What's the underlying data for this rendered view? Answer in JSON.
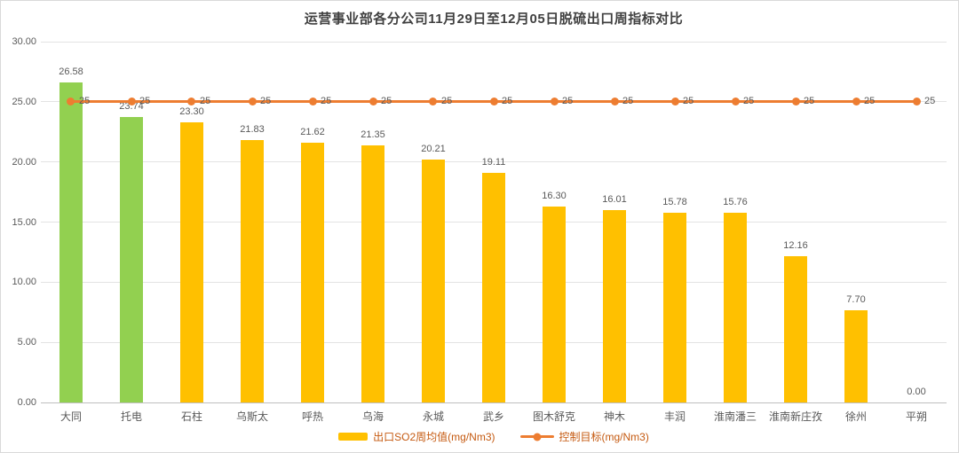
{
  "title": "运营事业部各分公司11月29日至12月05日脱硫出口周指标对比",
  "chart_data": {
    "type": "bar",
    "title": "运营事业部各分公司11月29日至12月05日脱硫出口周指标对比",
    "categories": [
      "大同",
      "托电",
      "石柱",
      "乌斯太",
      "呼热",
      "乌海",
      "永城",
      "武乡",
      "图木舒克",
      "神木",
      "丰润",
      "淮南潘三",
      "淮南新庄孜",
      "徐州",
      "平朔"
    ],
    "series": [
      {
        "name": "出口SO2周均值(mg/Nm3)",
        "type": "bar",
        "values": [
          26.58,
          23.74,
          23.3,
          21.83,
          21.62,
          21.35,
          20.21,
          19.11,
          16.3,
          16.01,
          15.78,
          15.76,
          12.16,
          7.7,
          0.0
        ],
        "bar_colors": [
          "#92D050",
          "#92D050",
          "#FFC000",
          "#FFC000",
          "#FFC000",
          "#FFC000",
          "#FFC000",
          "#FFC000",
          "#FFC000",
          "#FFC000",
          "#FFC000",
          "#FFC000",
          "#FFC000",
          "#FFC000",
          "#FFC000"
        ]
      },
      {
        "name": "控制目标(mg/Nm3)",
        "type": "line",
        "values": [
          25,
          25,
          25,
          25,
          25,
          25,
          25,
          25,
          25,
          25,
          25,
          25,
          25,
          25,
          25
        ],
        "color": "#ED7D31"
      }
    ],
    "xlabel": "",
    "ylabel": "",
    "ylim": [
      0,
      30
    ],
    "yticks": [
      30,
      25,
      20,
      15,
      10,
      5,
      0
    ],
    "ytick_labels": [
      "30.00",
      "25.00",
      "20.00",
      "15.00",
      "10.00",
      "5.00",
      "0.00"
    ],
    "grid": true,
    "legend_position": "bottom"
  },
  "colors": {
    "bar_default": "#FFC000",
    "bar_highlight": "#92D050",
    "target_line": "#ED7D31",
    "grid": "#E3E3E3",
    "axis": "#BFBFBF",
    "axis_text": "#595959",
    "title_text": "#404040",
    "legend_text": "#C55A11",
    "border": "#D9D9D9"
  }
}
